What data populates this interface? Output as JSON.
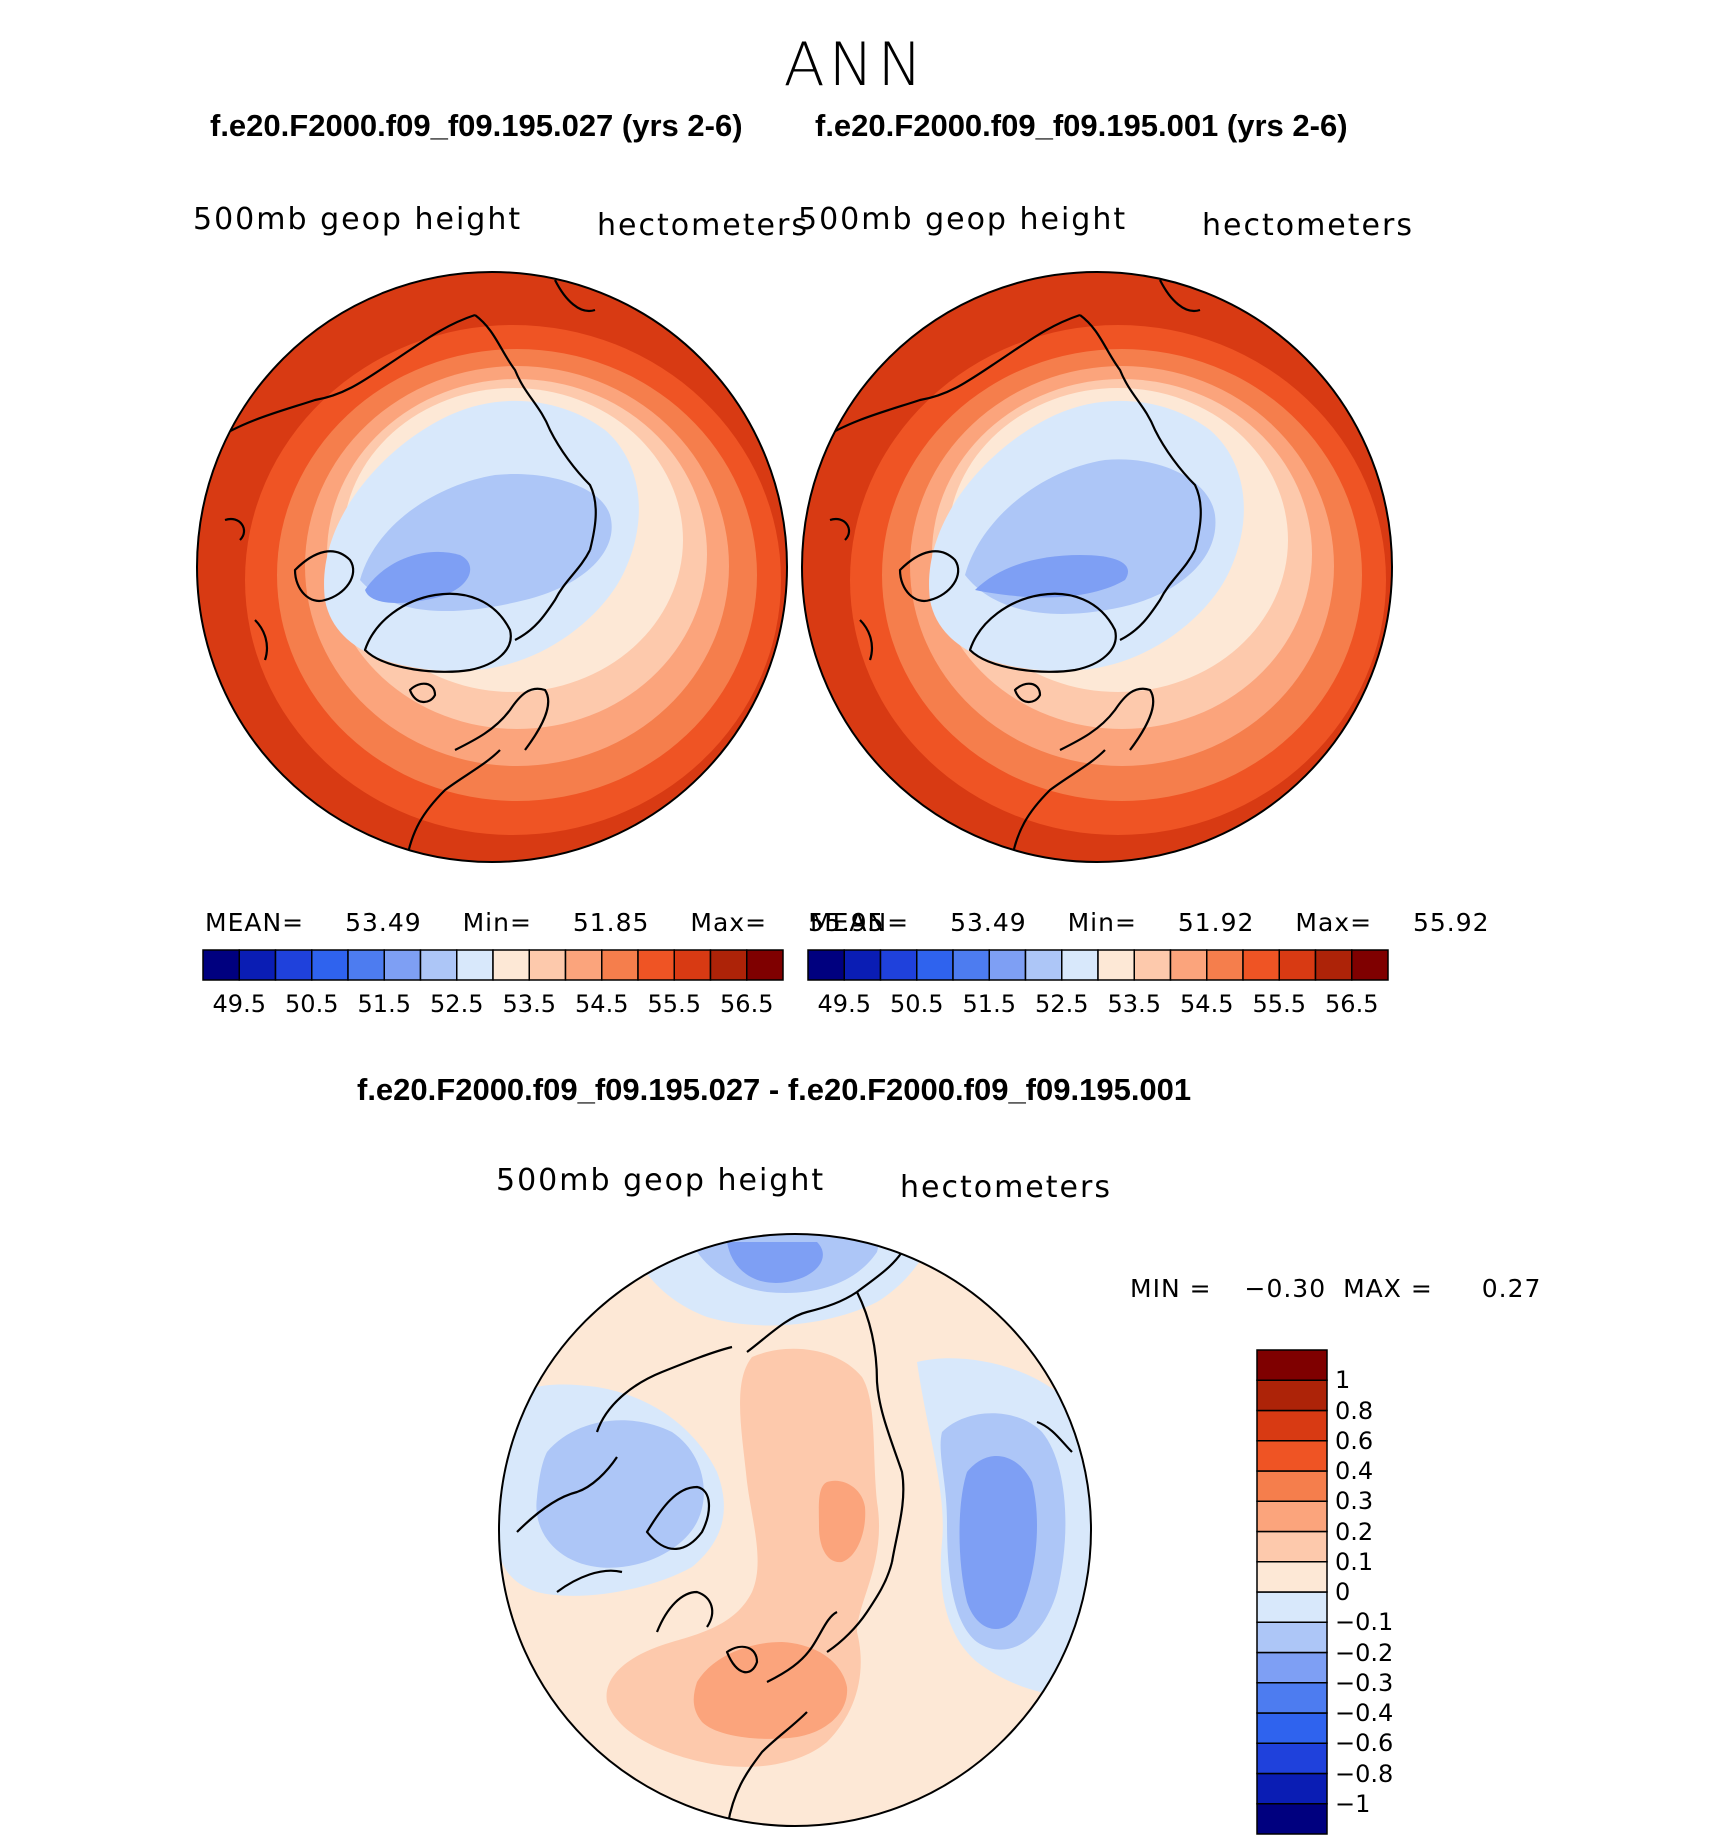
{
  "figure": {
    "season": "ANN",
    "panel_left": {
      "title": "f.e20.F2000.f09_f09.195.027 (yrs 2-6)",
      "variable": "500mb geop height",
      "units": "hectometers",
      "stats": {
        "mean_label": "MEAN=",
        "mean": "53.49",
        "min_label": "Min=",
        "min": "51.85",
        "max_label": "Max=",
        "max": "55.95"
      }
    },
    "panel_right": {
      "title": "f.e20.F2000.f09_f09.195.001 (yrs 2-6)",
      "variable": "500mb geop height",
      "units": "hectometers",
      "stats": {
        "mean_label": "MEAN=",
        "mean": "53.49",
        "min_label": "Min=",
        "min": "51.92",
        "max_label": "Max=",
        "max": "55.92"
      }
    },
    "panel_diff": {
      "title": "f.e20.F2000.f09_f09.195.027 - f.e20.F2000.f09_f09.195.001",
      "variable": "500mb geop height",
      "units": "hectometers",
      "stats": {
        "min_label": "MIN =",
        "min": "−0.30",
        "max_label": "MAX =",
        "max": "0.27"
      }
    }
  },
  "colorbar_abs": {
    "colors": [
      "#00007f",
      "#0a1db4",
      "#1f41dc",
      "#2f63ee",
      "#4d7cf0",
      "#7e9ff4",
      "#adc6f7",
      "#d8e8fb",
      "#fde8d6",
      "#fdc9ac",
      "#fba47c",
      "#f57e4c",
      "#ef5424",
      "#d83a13",
      "#ad2308",
      "#7f0000"
    ],
    "tick_labels": [
      "49.5",
      "50.5",
      "51.5",
      "52.5",
      "53.5",
      "54.5",
      "55.5",
      "56.5"
    ]
  },
  "colorbar_diff": {
    "colors": [
      "#00007f",
      "#0a1db4",
      "#1f41dc",
      "#2f63ee",
      "#4d7cf0",
      "#7e9ff4",
      "#adc6f7",
      "#d8e8fb",
      "#fde8d6",
      "#fdc9ac",
      "#fba47c",
      "#f57e4c",
      "#ef5424",
      "#d83a13",
      "#ad2308",
      "#7f0000"
    ],
    "tick_labels": [
      "−1",
      "−0.8",
      "−0.6",
      "−0.4",
      "−0.3",
      "−0.2",
      "−0.1",
      "0",
      "0.1",
      "0.2",
      "0.3",
      "0.4",
      "0.6",
      "0.8",
      "1"
    ]
  }
}
